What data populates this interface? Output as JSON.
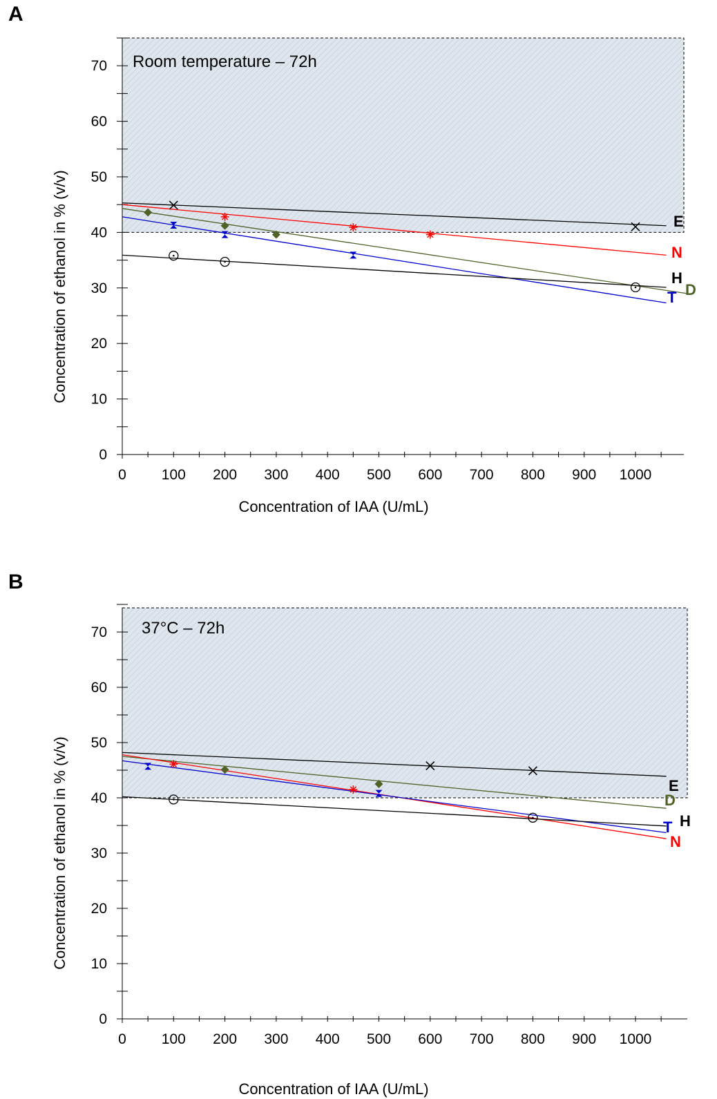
{
  "panels": [
    {
      "letter": "A",
      "title": "Room temperature – 72h",
      "xlabel": "Concentration of IAA (U/mL)",
      "ylabel": "Concentration of ethanol in % (v/v)"
    },
    {
      "letter": "B",
      "title": "37°C – 72h",
      "xlabel": "Concentration of IAA (U/mL)",
      "ylabel": "Concentration of ethanol in % (v/v)"
    }
  ],
  "chart_data": [
    {
      "type": "scatter",
      "title": "Room temperature – 72h",
      "xlabel": "Concentration of IAA (U/mL)",
      "ylabel": "Concentration of ethanol in % (v/v)",
      "xlim": [
        0,
        1100
      ],
      "ylim": [
        0,
        75
      ],
      "xticks": [
        0,
        100,
        200,
        300,
        400,
        500,
        600,
        700,
        800,
        900,
        1000
      ],
      "yticks": [
        0,
        10,
        20,
        30,
        40,
        50,
        60,
        70
      ],
      "shaded_region": {
        "y_from": 40,
        "y_to": 75,
        "color": "#dfe6ee"
      },
      "series": [
        {
          "name": "E",
          "color": "#000000",
          "marker": "x",
          "x": [
            100,
            1000
          ],
          "y": [
            44.9,
            41.0
          ],
          "trend": {
            "x": [
              0,
              1060
            ],
            "y": [
              45.3,
              41.2
            ]
          }
        },
        {
          "name": "N",
          "color": "#ff0000",
          "marker": "asterisk",
          "x": [
            200,
            450,
            600
          ],
          "y": [
            42.8,
            40.9,
            39.6
          ],
          "trend": {
            "x": [
              0,
              1060
            ],
            "y": [
              45.0,
              35.9
            ]
          }
        },
        {
          "name": "D",
          "color": "#4f6228",
          "marker": "diamond",
          "x": [
            50,
            200,
            300
          ],
          "y": [
            43.6,
            41.2,
            39.6
          ],
          "trend": {
            "x": [
              0,
              1100
            ],
            "y": [
              44.3,
              29.0
            ]
          }
        },
        {
          "name": "T",
          "color": "#0000cc",
          "marker": "bowtie",
          "x": [
            100,
            200,
            450
          ],
          "y": [
            41.3,
            39.6,
            35.9
          ],
          "trend": {
            "x": [
              0,
              1060
            ],
            "y": [
              42.8,
              27.3
            ]
          }
        },
        {
          "name": "H",
          "color": "#000000",
          "marker": "circle",
          "x": [
            100,
            200,
            1000
          ],
          "y": [
            35.8,
            34.7,
            30.1
          ],
          "trend": {
            "x": [
              0,
              1060
            ],
            "y": [
              35.9,
              30.1
            ]
          }
        }
      ]
    },
    {
      "type": "scatter",
      "title": "37°C – 72h",
      "xlabel": "Concentration of IAA (U/mL)",
      "ylabel": "Concentration of ethanol in % (v/v)",
      "xlim": [
        0,
        1100
      ],
      "ylim": [
        0,
        75
      ],
      "xticks": [
        0,
        100,
        200,
        300,
        400,
        500,
        600,
        700,
        800,
        900,
        1000
      ],
      "yticks": [
        0,
        10,
        20,
        30,
        40,
        50,
        60,
        70
      ],
      "shaded_region": {
        "y_from": 40,
        "y_to": 75,
        "color": "#dfe6ee"
      },
      "series": [
        {
          "name": "E",
          "color": "#000000",
          "marker": "x",
          "x": [
            600,
            800
          ],
          "y": [
            45.8,
            44.9
          ],
          "trend": {
            "x": [
              0,
              1060
            ],
            "y": [
              48.2,
              43.9
            ]
          }
        },
        {
          "name": "D",
          "color": "#4f6228",
          "marker": "diamond",
          "x": [
            200,
            500
          ],
          "y": [
            45.1,
            42.5
          ],
          "trend": {
            "x": [
              0,
              1060
            ],
            "y": [
              47.5,
              38.1
            ]
          }
        },
        {
          "name": "N",
          "color": "#ff0000",
          "marker": "asterisk",
          "x": [
            100,
            450
          ],
          "y": [
            46.1,
            41.5
          ],
          "trend": {
            "x": [
              0,
              1060
            ],
            "y": [
              47.8,
              32.6
            ]
          }
        },
        {
          "name": "T",
          "color": "#0000cc",
          "marker": "bowtie",
          "x": [
            50,
            500
          ],
          "y": [
            45.7,
            40.8
          ],
          "trend": {
            "x": [
              0,
              1060
            ],
            "y": [
              46.7,
              33.7
            ]
          }
        },
        {
          "name": "H",
          "color": "#000000",
          "marker": "circle",
          "x": [
            100,
            800
          ],
          "y": [
            39.7,
            36.4
          ],
          "trend": {
            "x": [
              0,
              1060
            ],
            "y": [
              40.2,
              34.9
            ]
          }
        }
      ]
    }
  ]
}
